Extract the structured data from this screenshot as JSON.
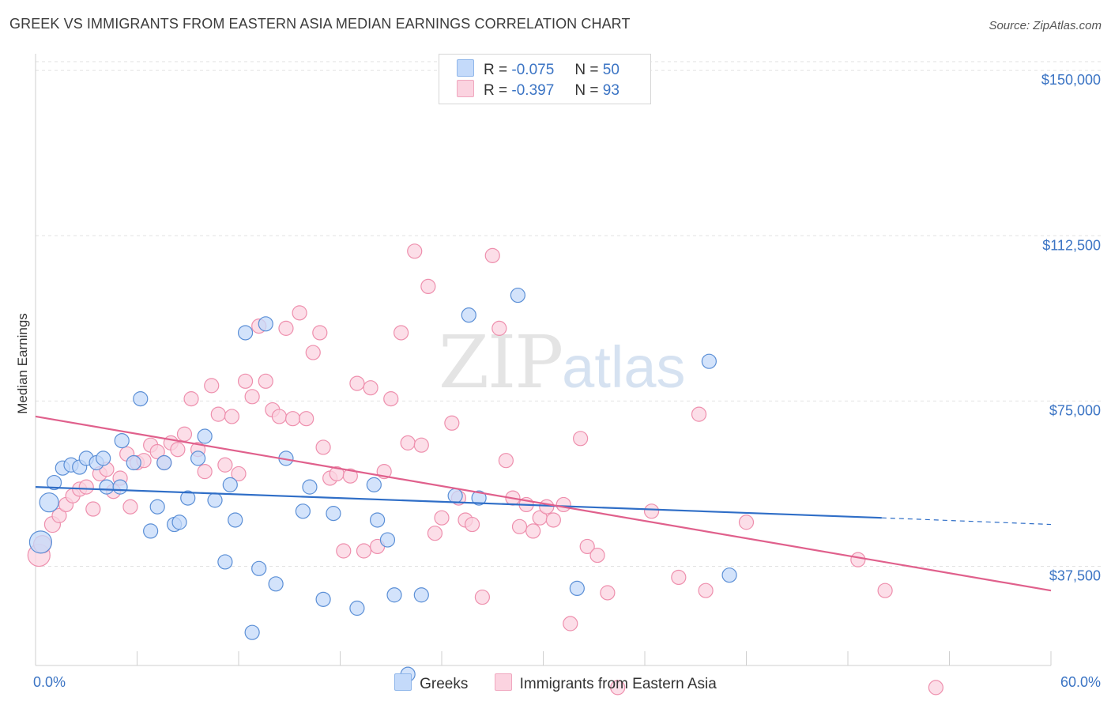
{
  "title": "GREEK VS IMMIGRANTS FROM EASTERN ASIA MEDIAN EARNINGS CORRELATION CHART",
  "source": "Source: ZipAtlas.com",
  "watermark": {
    "zip": "ZIP",
    "atlas": "atlas"
  },
  "legend": {
    "r_label": "R =",
    "n_label": "N =",
    "rows": [
      {
        "r": "-0.075",
        "n": "50",
        "color": "#8fb6ea",
        "fill": "#c4dafa"
      },
      {
        "r": "-0.397",
        "n": "93",
        "color": "#f0a7bf",
        "fill": "#fbd3e0"
      }
    ]
  },
  "chart_data": {
    "type": "scatter",
    "title": "GREEK VS IMMIGRANTS FROM EASTERN ASIA MEDIAN EARNINGS CORRELATION CHART",
    "xlabel": "",
    "ylabel": "Median Earnings",
    "xlim": [
      0,
      60
    ],
    "ylim": [
      15000,
      152000
    ],
    "x_tick_labels": [
      "0.0%",
      "60.0%"
    ],
    "y_ticks": [
      {
        "value": 37500,
        "label": "$37,500"
      },
      {
        "value": 75000,
        "label": "$75,000"
      },
      {
        "value": 112500,
        "label": "$112,500"
      },
      {
        "value": 150000,
        "label": "$150,000"
      }
    ],
    "grid": true,
    "legend_position": "top-center",
    "series": [
      {
        "name": "Greeks",
        "color": "#5b8fd6",
        "fill": "#c4dafa",
        "trend": {
          "x0": 0,
          "y0": 55500,
          "x1": 50,
          "y1": 48500,
          "dash_to_x": 60,
          "dash_to_y": 47000,
          "color": "#2f6ec7"
        },
        "points": [
          [
            0.3,
            43000,
            14
          ],
          [
            0.8,
            52000,
            12
          ],
          [
            1.1,
            56500,
            9
          ],
          [
            1.6,
            59800,
            9
          ],
          [
            2.1,
            60500,
            9
          ],
          [
            2.6,
            60000,
            9
          ],
          [
            3.0,
            62000,
            9
          ],
          [
            3.6,
            61000,
            9
          ],
          [
            4.0,
            62000,
            9
          ],
          [
            4.2,
            55500,
            9
          ],
          [
            5.0,
            55500,
            9
          ],
          [
            5.1,
            66000,
            9
          ],
          [
            5.8,
            61000,
            9
          ],
          [
            6.2,
            75500,
            9
          ],
          [
            6.8,
            45500,
            9
          ],
          [
            7.2,
            51000,
            9
          ],
          [
            7.6,
            61000,
            9
          ],
          [
            8.2,
            47000,
            9
          ],
          [
            8.5,
            47500,
            9
          ],
          [
            9.0,
            53000,
            9
          ],
          [
            9.6,
            62000,
            9
          ],
          [
            10.0,
            67000,
            9
          ],
          [
            10.6,
            52500,
            9
          ],
          [
            11.2,
            38500,
            9
          ],
          [
            11.5,
            56000,
            9
          ],
          [
            11.8,
            48000,
            9
          ],
          [
            12.4,
            90500,
            9
          ],
          [
            12.8,
            22500,
            9
          ],
          [
            13.2,
            37000,
            9
          ],
          [
            13.6,
            92500,
            9
          ],
          [
            14.2,
            33500,
            9
          ],
          [
            14.8,
            62000,
            9
          ],
          [
            15.8,
            50000,
            9
          ],
          [
            16.2,
            55500,
            9
          ],
          [
            17.0,
            30000,
            9
          ],
          [
            17.6,
            49500,
            9
          ],
          [
            19.0,
            28000,
            9
          ],
          [
            20.0,
            56000,
            9
          ],
          [
            20.2,
            48000,
            9
          ],
          [
            20.8,
            43500,
            9
          ],
          [
            21.2,
            31000,
            9
          ],
          [
            22.0,
            13000,
            9
          ],
          [
            22.8,
            31000,
            9
          ],
          [
            24.8,
            53500,
            9
          ],
          [
            25.6,
            94500,
            9
          ],
          [
            26.2,
            53000,
            9
          ],
          [
            28.5,
            99000,
            9
          ],
          [
            32.0,
            32500,
            9
          ],
          [
            39.8,
            84000,
            9
          ],
          [
            41.0,
            35500,
            9
          ]
        ]
      },
      {
        "name": "Immigrants from Eastern Asia",
        "color": "#ee8fad",
        "fill": "#fbd3e0",
        "trend": {
          "x0": 0,
          "y0": 71500,
          "x1": 60,
          "y1": 32000,
          "color": "#e0608c"
        },
        "points": [
          [
            0.2,
            40000,
            14
          ],
          [
            0.4,
            42500,
            11
          ],
          [
            1.0,
            47000,
            10
          ],
          [
            1.4,
            49000,
            9
          ],
          [
            1.8,
            51500,
            9
          ],
          [
            2.2,
            53500,
            9
          ],
          [
            2.6,
            55000,
            9
          ],
          [
            3.0,
            55500,
            9
          ],
          [
            3.4,
            50500,
            9
          ],
          [
            3.8,
            58500,
            9
          ],
          [
            4.2,
            59500,
            9
          ],
          [
            4.6,
            54500,
            9
          ],
          [
            5.0,
            57500,
            9
          ],
          [
            5.4,
            63000,
            9
          ],
          [
            5.6,
            51000,
            9
          ],
          [
            6.0,
            61000,
            9
          ],
          [
            6.4,
            61500,
            9
          ],
          [
            6.8,
            65000,
            9
          ],
          [
            7.2,
            63500,
            9
          ],
          [
            7.6,
            61000,
            9
          ],
          [
            8.0,
            65500,
            9
          ],
          [
            8.4,
            64000,
            9
          ],
          [
            8.8,
            67500,
            9
          ],
          [
            9.2,
            75500,
            9
          ],
          [
            9.6,
            64000,
            9
          ],
          [
            10.0,
            59000,
            9
          ],
          [
            10.4,
            78500,
            9
          ],
          [
            10.8,
            72000,
            9
          ],
          [
            11.2,
            60500,
            9
          ],
          [
            11.6,
            71500,
            9
          ],
          [
            12.0,
            58500,
            9
          ],
          [
            12.4,
            79500,
            9
          ],
          [
            12.8,
            76000,
            9
          ],
          [
            13.2,
            92000,
            9
          ],
          [
            13.6,
            79500,
            9
          ],
          [
            14.0,
            73000,
            9
          ],
          [
            14.4,
            71500,
            9
          ],
          [
            14.8,
            91500,
            9
          ],
          [
            15.2,
            71000,
            9
          ],
          [
            15.6,
            95000,
            9
          ],
          [
            16.0,
            71000,
            9
          ],
          [
            16.4,
            86000,
            9
          ],
          [
            16.8,
            90500,
            9
          ],
          [
            17.0,
            64500,
            9
          ],
          [
            17.4,
            57500,
            9
          ],
          [
            17.8,
            58500,
            9
          ],
          [
            18.2,
            41000,
            9
          ],
          [
            18.6,
            58000,
            9
          ],
          [
            19.0,
            79000,
            9
          ],
          [
            19.4,
            41000,
            9
          ],
          [
            19.8,
            78000,
            9
          ],
          [
            20.2,
            42000,
            9
          ],
          [
            20.6,
            59000,
            9
          ],
          [
            21.0,
            75500,
            9
          ],
          [
            21.6,
            90500,
            9
          ],
          [
            22.0,
            65500,
            9
          ],
          [
            22.4,
            109000,
            9
          ],
          [
            22.8,
            65000,
            9
          ],
          [
            23.2,
            101000,
            9
          ],
          [
            23.6,
            45000,
            9
          ],
          [
            24.0,
            48500,
            9
          ],
          [
            24.6,
            70000,
            9
          ],
          [
            25.0,
            53000,
            9
          ],
          [
            25.4,
            48000,
            9
          ],
          [
            25.8,
            47000,
            9
          ],
          [
            26.4,
            30500,
            9
          ],
          [
            27.0,
            108000,
            9
          ],
          [
            27.4,
            91500,
            9
          ],
          [
            27.8,
            61500,
            9
          ],
          [
            28.2,
            53000,
            9
          ],
          [
            28.6,
            46500,
            9
          ],
          [
            29.0,
            51500,
            9
          ],
          [
            29.4,
            45500,
            9
          ],
          [
            29.8,
            48500,
            9
          ],
          [
            30.2,
            51000,
            9
          ],
          [
            30.6,
            48000,
            9
          ],
          [
            31.2,
            51500,
            9
          ],
          [
            31.6,
            24500,
            9
          ],
          [
            32.2,
            66500,
            9
          ],
          [
            32.6,
            42000,
            9
          ],
          [
            33.2,
            40000,
            9
          ],
          [
            33.8,
            31500,
            9
          ],
          [
            34.4,
            10000,
            9
          ],
          [
            36.4,
            50000,
            9
          ],
          [
            37.4,
            3500,
            9
          ],
          [
            38.0,
            35000,
            9
          ],
          [
            39.2,
            72000,
            9
          ],
          [
            39.6,
            32000,
            9
          ],
          [
            42.0,
            47500,
            9
          ],
          [
            45.6,
            3500,
            9
          ],
          [
            48.6,
            39000,
            9
          ],
          [
            50.2,
            32000,
            9
          ],
          [
            53.2,
            10000,
            9
          ]
        ]
      }
    ]
  }
}
